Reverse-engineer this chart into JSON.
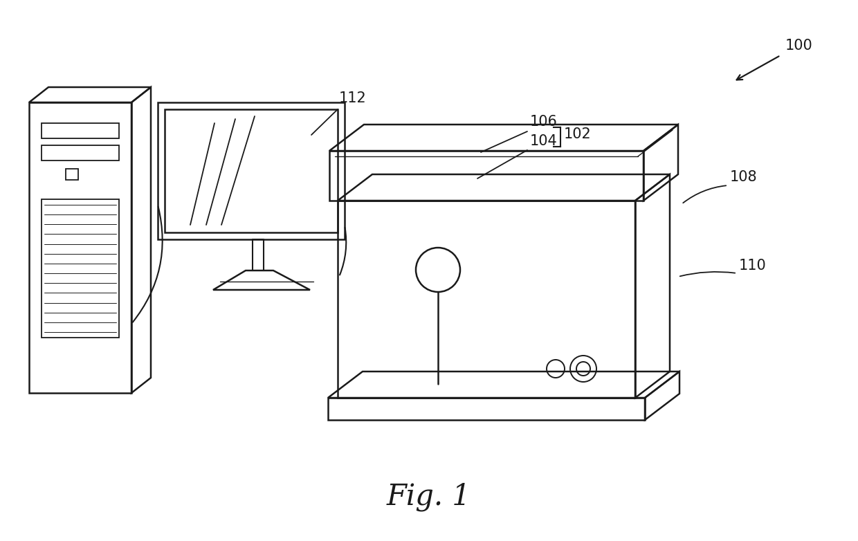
{
  "title": "Fig. 1",
  "title_fontsize": 30,
  "background_color": "#ffffff",
  "line_color": "#1a1a1a",
  "line_width": 1.8,
  "label_fontsize": 15
}
